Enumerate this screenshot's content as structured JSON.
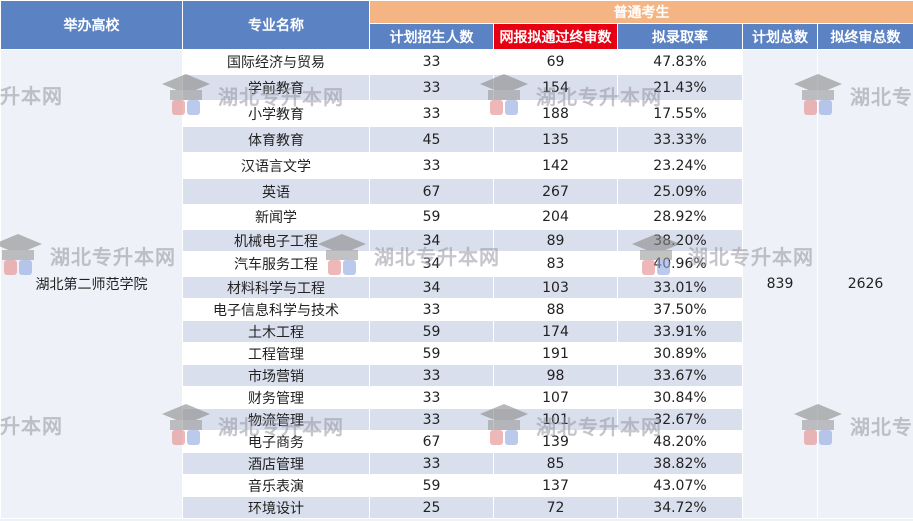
{
  "header": {
    "school_col": "举办高校",
    "major_col": "专业名称",
    "group_title": "普通考生",
    "planned_col": "计划招生人数",
    "passed_col": "网报拟通过终审数",
    "rate_col": "拟录取率",
    "total_planned_col": "计划总数",
    "total_passed_col": "拟终审总数"
  },
  "school": "湖北第二师范学院",
  "total_planned": "839",
  "total_passed": "2626",
  "rows": [
    {
      "major": "国际经济与贸易",
      "planned": "33",
      "passed": "69",
      "rate": "47.83%"
    },
    {
      "major": "学前教育",
      "planned": "33",
      "passed": "154",
      "rate": "21.43%"
    },
    {
      "major": "小学教育",
      "planned": "33",
      "passed": "188",
      "rate": "17.55%"
    },
    {
      "major": "体育教育",
      "planned": "45",
      "passed": "135",
      "rate": "33.33%"
    },
    {
      "major": "汉语言文学",
      "planned": "33",
      "passed": "142",
      "rate": "23.24%"
    },
    {
      "major": "英语",
      "planned": "67",
      "passed": "267",
      "rate": "25.09%"
    },
    {
      "major": "新闻学",
      "planned": "59",
      "passed": "204",
      "rate": "28.92%"
    },
    {
      "major": "机械电子工程",
      "planned": "34",
      "passed": "89",
      "rate": "38.20%"
    },
    {
      "major": "汽车服务工程",
      "planned": "34",
      "passed": "83",
      "rate": "40.96%"
    },
    {
      "major": "材料科学与工程",
      "planned": "34",
      "passed": "103",
      "rate": "33.01%"
    },
    {
      "major": "电子信息科学与技术",
      "planned": "33",
      "passed": "88",
      "rate": "37.50%"
    },
    {
      "major": "土木工程",
      "planned": "59",
      "passed": "174",
      "rate": "33.91%"
    },
    {
      "major": "工程管理",
      "planned": "59",
      "passed": "191",
      "rate": "30.89%"
    },
    {
      "major": "市场营销",
      "planned": "33",
      "passed": "98",
      "rate": "33.67%"
    },
    {
      "major": "财务管理",
      "planned": "33",
      "passed": "107",
      "rate": "30.84%"
    },
    {
      "major": "物流管理",
      "planned": "33",
      "passed": "101",
      "rate": "32.67%"
    },
    {
      "major": "电子商务",
      "planned": "67",
      "passed": "139",
      "rate": "48.20%"
    },
    {
      "major": "酒店管理",
      "planned": "33",
      "passed": "85",
      "rate": "38.82%"
    },
    {
      "major": "音乐表演",
      "planned": "59",
      "passed": "137",
      "rate": "43.07%"
    },
    {
      "major": "环境设计",
      "planned": "25",
      "passed": "72",
      "rate": "34.72%"
    }
  ],
  "watermark": {
    "text": "湖北专升本网",
    "partial_left": "升本网",
    "partial_right": "湖北专",
    "icon": "graduation-cap-icon"
  }
}
